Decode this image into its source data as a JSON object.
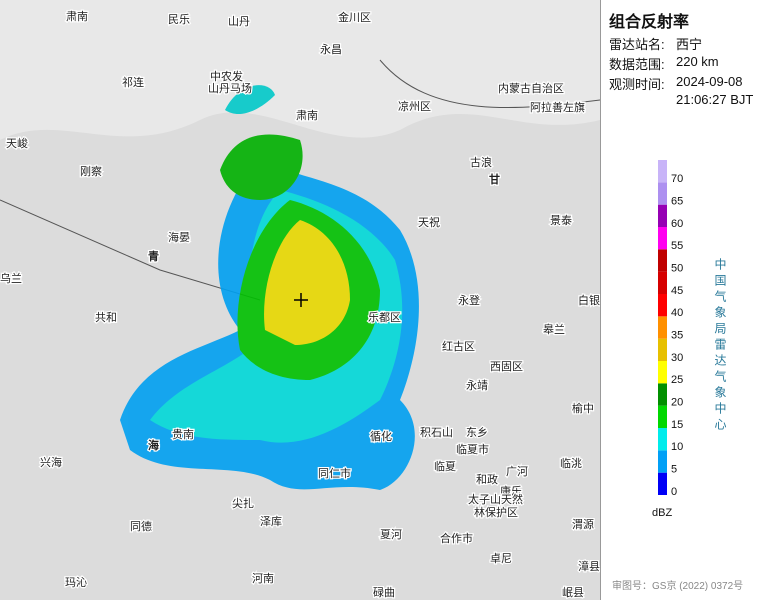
{
  "panel": {
    "title": "组合反射率",
    "rows": [
      {
        "label": "雷达站名:",
        "value": "西宁"
      },
      {
        "label": "数据范围:",
        "value": "220 km"
      },
      {
        "label": "观测时间:",
        "value": "2024-09-08"
      }
    ],
    "time_extra": "21:06:27 BJT"
  },
  "legend": {
    "ticks": [
      0,
      5,
      10,
      15,
      20,
      25,
      30,
      35,
      40,
      45,
      50,
      55,
      60,
      65,
      70
    ],
    "colors": [
      "#0000f6",
      "#01a0f6",
      "#00ecec",
      "#00d800",
      "#019000",
      "#ffff00",
      "#e7c000",
      "#ff9000",
      "#ff0000",
      "#d60000",
      "#c00000",
      "#ff00f0",
      "#9600b4",
      "#ad90f0",
      "#c8b4f8"
    ],
    "unit": "dBZ",
    "side_text": "中国气象局雷达气象中心"
  },
  "approval": "审图号：GS京 (2022) 0372号",
  "map_labels": [
    "肃南",
    "民乐",
    "山丹",
    "金川区",
    "永昌",
    "祁连",
    "中农发",
    "山丹马场",
    "天峻",
    "刚察",
    "肃南",
    "凉州区",
    "内蒙古自治区",
    "阿拉善左旗",
    "古浪",
    "甘",
    "天祝",
    "景泰",
    "海晏",
    "青",
    "乌兰",
    "共和",
    "乐都区",
    "永登",
    "白银",
    "皋兰",
    "红古区",
    "西固区",
    "永靖",
    "榆中",
    "贵南",
    "海",
    "循化",
    "积石山",
    "东乡",
    "临夏市",
    "临夏",
    "和政",
    "广河",
    "临洮",
    "康乐",
    "太子山天然",
    "林保护区",
    "兴海",
    "同仁市",
    "尖扎",
    "泽库",
    "同德",
    "夏河",
    "合作市",
    "卓尼",
    "渭源",
    "漳县",
    "玛沁",
    "河南",
    "碌曲",
    "岷县"
  ]
}
